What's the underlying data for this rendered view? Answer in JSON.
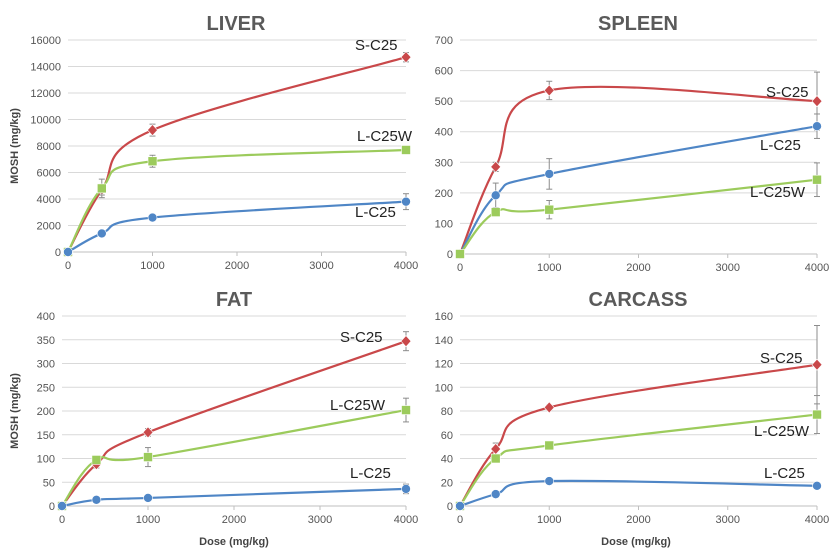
{
  "colors": {
    "S-C25": "#c9484a",
    "L-C25W": "#9ccb5c",
    "L-C25": "#4f86c6"
  },
  "chart_data": [
    {
      "type": "line",
      "title": "LIVER",
      "xlabel": "",
      "ylabel": "MOSH (mg/kg)",
      "xlim": [
        0,
        4000
      ],
      "ylim": [
        0,
        16000
      ],
      "xticks": [
        0,
        1000,
        2000,
        3000,
        4000
      ],
      "yticks": [
        0,
        2000,
        4000,
        6000,
        8000,
        10000,
        12000,
        14000,
        16000
      ],
      "grid": true,
      "series": [
        {
          "name": "S-C25",
          "x": [
            0,
            400,
            1000,
            4000
          ],
          "y": [
            0,
            4700,
            9200,
            14700
          ],
          "err": [
            0,
            400,
            450,
            350
          ],
          "marker": "diamond"
        },
        {
          "name": "L-C25W",
          "x": [
            0,
            400,
            1000,
            4000
          ],
          "y": [
            0,
            4800,
            6850,
            7700
          ],
          "err": [
            0,
            700,
            450,
            250
          ],
          "marker": "square"
        },
        {
          "name": "L-C25",
          "x": [
            0,
            400,
            1000,
            4000
          ],
          "y": [
            0,
            1400,
            2600,
            3800
          ],
          "err": [
            0,
            100,
            120,
            600
          ],
          "marker": "circle"
        }
      ]
    },
    {
      "type": "line",
      "title": "SPLEEN",
      "xlabel": "",
      "ylabel": "",
      "xlim": [
        0,
        4000
      ],
      "ylim": [
        0,
        700
      ],
      "xticks": [
        0,
        1000,
        2000,
        3000,
        4000
      ],
      "yticks": [
        0,
        100,
        200,
        300,
        400,
        500,
        600,
        700
      ],
      "grid": true,
      "series": [
        {
          "name": "S-C25",
          "x": [
            0,
            400,
            1000,
            4000
          ],
          "y": [
            0,
            285,
            535,
            500
          ],
          "err": [
            0,
            15,
            30,
            95
          ],
          "marker": "diamond"
        },
        {
          "name": "L-C25",
          "x": [
            0,
            400,
            1000,
            4000
          ],
          "y": [
            0,
            192,
            262,
            418
          ],
          "err": [
            0,
            40,
            50,
            40
          ],
          "marker": "circle"
        },
        {
          "name": "L-C25W",
          "x": [
            0,
            400,
            1000,
            4000
          ],
          "y": [
            0,
            137,
            145,
            243
          ],
          "err": [
            0,
            10,
            30,
            55
          ],
          "marker": "square"
        }
      ]
    },
    {
      "type": "line",
      "title": "FAT",
      "xlabel": "",
      "ylabel": "MOSH (mg/kg)",
      "xlim": [
        0,
        4000
      ],
      "ylim": [
        0,
        400
      ],
      "xticks": [
        0,
        1000,
        2000,
        3000,
        4000
      ],
      "yticks": [
        0,
        50,
        100,
        150,
        200,
        250,
        300,
        350,
        400
      ],
      "grid": true,
      "series": [
        {
          "name": "S-C25",
          "x": [
            0,
            400,
            1000,
            4000
          ],
          "y": [
            0,
            88,
            155,
            347
          ],
          "err": [
            0,
            8,
            8,
            20
          ],
          "marker": "diamond"
        },
        {
          "name": "L-C25W",
          "x": [
            0,
            400,
            1000,
            4000
          ],
          "y": [
            0,
            97,
            103,
            202
          ],
          "err": [
            0,
            5,
            20,
            25
          ],
          "marker": "square"
        },
        {
          "name": "L-C25",
          "x": [
            0,
            400,
            1000,
            4000
          ],
          "y": [
            0,
            13,
            17,
            36
          ],
          "err": [
            0,
            3,
            3,
            10
          ],
          "marker": "circle"
        }
      ]
    },
    {
      "type": "line",
      "title": "CARCASS",
      "xlabel": "",
      "ylabel": "",
      "xlim": [
        0,
        4000
      ],
      "ylim": [
        0,
        160
      ],
      "xticks": [
        0,
        1000,
        2000,
        3000,
        4000
      ],
      "yticks": [
        0,
        20,
        40,
        60,
        80,
        100,
        120,
        140,
        160
      ],
      "grid": true,
      "series": [
        {
          "name": "S-C25",
          "x": [
            0,
            400,
            1000,
            4000
          ],
          "y": [
            0,
            48,
            83,
            119
          ],
          "err": [
            0,
            5,
            2,
            33
          ],
          "marker": "diamond"
        },
        {
          "name": "L-C25W",
          "x": [
            0,
            400,
            1000,
            4000
          ],
          "y": [
            0,
            40,
            51,
            77
          ],
          "err": [
            0,
            2,
            3,
            16
          ],
          "marker": "square"
        },
        {
          "name": "L-C25",
          "x": [
            0,
            400,
            1000,
            4000
          ],
          "y": [
            0,
            10,
            21,
            17
          ],
          "err": [
            0,
            2,
            2,
            2
          ],
          "marker": "circle"
        }
      ]
    }
  ],
  "labels": [
    {
      "text": "S-C25"
    },
    {
      "text": "L-C25W"
    },
    {
      "text": "L-C25"
    },
    {
      "text": "S-C25"
    },
    {
      "text": "L-C25"
    },
    {
      "text": "L-C25W"
    },
    {
      "text": "S-C25"
    },
    {
      "text": "L-C25W"
    },
    {
      "text": "L-C25"
    },
    {
      "text": "S-C25"
    },
    {
      "text": "L-C25W"
    },
    {
      "text": "L-C25"
    }
  ],
  "xlabels": [
    "Dose (mg/kg)",
    "Dose (mg/kg)"
  ]
}
